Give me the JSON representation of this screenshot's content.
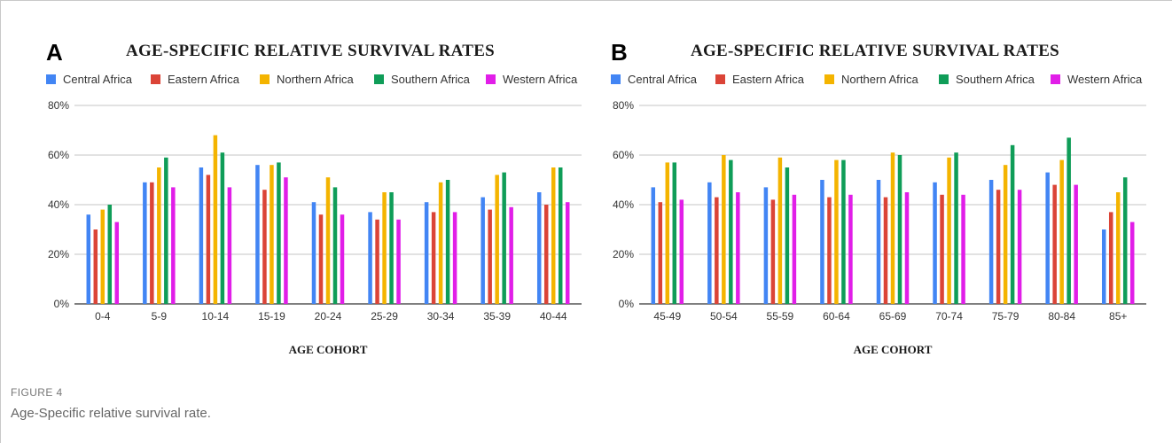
{
  "chart_data": [
    {
      "type": "bar",
      "panel_letter": "A",
      "title": "AGE-SPECIFIC RELATIVE SURVIVAL RATES",
      "xlabel": "AGE COHORT",
      "ylabel": "",
      "ylim": [
        0,
        80
      ],
      "yticks": [
        "0%",
        "20%",
        "40%",
        "60%",
        "80%"
      ],
      "grid": true,
      "legend_position": "top",
      "categories": [
        "0-4",
        "5-9",
        "10-14",
        "15-19",
        "20-24",
        "25-29",
        "30-34",
        "35-39",
        "40-44"
      ],
      "series": [
        {
          "name": "Central Africa",
          "color": "#4285f4",
          "values": [
            36,
            49,
            55,
            56,
            41,
            37,
            41,
            43,
            45
          ]
        },
        {
          "name": "Eastern Africa",
          "color": "#db4437",
          "values": [
            30,
            49,
            52,
            46,
            36,
            34,
            37,
            38,
            40
          ]
        },
        {
          "name": "Northern Africa",
          "color": "#f4b400",
          "values": [
            38,
            55,
            68,
            56,
            51,
            45,
            49,
            52,
            55
          ]
        },
        {
          "name": "Southern Africa",
          "color": "#0f9d58",
          "values": [
            40,
            59,
            61,
            57,
            47,
            45,
            50,
            53,
            55
          ]
        },
        {
          "name": "Western Africa",
          "color": "#e11ee8",
          "values": [
            33,
            47,
            47,
            51,
            36,
            34,
            37,
            39,
            41
          ]
        }
      ]
    },
    {
      "type": "bar",
      "panel_letter": "B",
      "title": "AGE-SPECIFIC RELATIVE SURVIVAL RATES",
      "xlabel": "AGE COHORT",
      "ylabel": "",
      "ylim": [
        0,
        80
      ],
      "yticks": [
        "0%",
        "20%",
        "40%",
        "60%",
        "80%"
      ],
      "grid": true,
      "legend_position": "top",
      "categories": [
        "45-49",
        "50-54",
        "55-59",
        "60-64",
        "65-69",
        "70-74",
        "75-79",
        "80-84",
        "85+"
      ],
      "series": [
        {
          "name": "Central Africa",
          "color": "#4285f4",
          "values": [
            47,
            49,
            47,
            50,
            50,
            49,
            50,
            53,
            30
          ]
        },
        {
          "name": "Eastern Africa",
          "color": "#db4437",
          "values": [
            41,
            43,
            42,
            43,
            43,
            44,
            46,
            48,
            37
          ]
        },
        {
          "name": "Northern Africa",
          "color": "#f4b400",
          "values": [
            57,
            60,
            59,
            58,
            61,
            59,
            56,
            58,
            45
          ]
        },
        {
          "name": "Southern Africa",
          "color": "#0f9d58",
          "values": [
            57,
            58,
            55,
            58,
            60,
            61,
            64,
            67,
            51
          ]
        },
        {
          "name": "Western Africa",
          "color": "#e11ee8",
          "values": [
            42,
            45,
            44,
            44,
            45,
            44,
            46,
            48,
            33
          ]
        }
      ]
    }
  ],
  "caption": {
    "figure_label": "FIGURE 4",
    "text": "Age-Specific relative survival rate."
  }
}
